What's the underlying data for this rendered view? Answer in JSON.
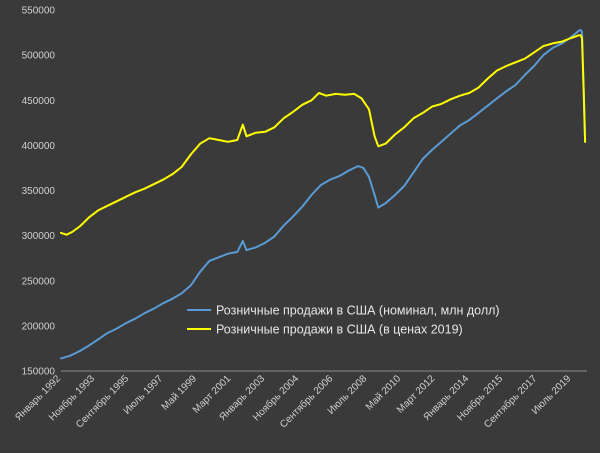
{
  "chart_data": {
    "type": "line",
    "ylim": [
      150000,
      550000
    ],
    "y_ticks": [
      150000,
      200000,
      250000,
      300000,
      350000,
      400000,
      450000,
      500000,
      550000
    ],
    "x_range": [
      1992.0,
      2020.35
    ],
    "x_tick_labels": [
      {
        "label": "Январь 1992",
        "x": 1992.0
      },
      {
        "label": "Ноябрь 1993",
        "x": 1993.83
      },
      {
        "label": "Сентябрь 1995",
        "x": 1995.67
      },
      {
        "label": "Июль 1997",
        "x": 1997.5
      },
      {
        "label": "Май 1999",
        "x": 1999.33
      },
      {
        "label": "Март 2001",
        "x": 2001.17
      },
      {
        "label": "Январь 2003",
        "x": 2003.0
      },
      {
        "label": "Ноябрь 2004",
        "x": 2004.83
      },
      {
        "label": "Сентябрь 2006",
        "x": 2006.67
      },
      {
        "label": "Июль 2008",
        "x": 2008.5
      },
      {
        "label": "Май 2010",
        "x": 2010.33
      },
      {
        "label": "Март 2012",
        "x": 2012.17
      },
      {
        "label": "Январь 2014",
        "x": 2014.0
      },
      {
        "label": "Ноябрь 2015",
        "x": 2015.83
      },
      {
        "label": "Сентябрь 2017",
        "x": 2017.67
      },
      {
        "label": "Июль 2019",
        "x": 2019.5
      }
    ],
    "grid": false,
    "legend_position": "bottom-center",
    "series": [
      {
        "name": "Розничные продажи в США (номинал, млн долл)",
        "color": "#5b9bd5",
        "points": [
          [
            1992.0,
            164000
          ],
          [
            1992.5,
            167000
          ],
          [
            1993.0,
            172000
          ],
          [
            1993.5,
            178000
          ],
          [
            1994.0,
            185000
          ],
          [
            1994.5,
            192000
          ],
          [
            1995.0,
            197000
          ],
          [
            1995.5,
            203000
          ],
          [
            1996.0,
            208000
          ],
          [
            1996.5,
            214000
          ],
          [
            1997.0,
            219000
          ],
          [
            1997.5,
            225000
          ],
          [
            1998.0,
            230000
          ],
          [
            1998.5,
            236000
          ],
          [
            1999.0,
            245000
          ],
          [
            1999.5,
            260000
          ],
          [
            2000.0,
            272000
          ],
          [
            2000.5,
            276000
          ],
          [
            2001.0,
            280000
          ],
          [
            2001.5,
            282000
          ],
          [
            2001.8,
            294000
          ],
          [
            2002.0,
            284000
          ],
          [
            2002.5,
            287000
          ],
          [
            2003.0,
            292000
          ],
          [
            2003.5,
            299000
          ],
          [
            2004.0,
            311000
          ],
          [
            2004.5,
            321000
          ],
          [
            2005.0,
            332000
          ],
          [
            2005.5,
            345000
          ],
          [
            2006.0,
            356000
          ],
          [
            2006.5,
            362000
          ],
          [
            2007.0,
            366000
          ],
          [
            2007.5,
            372000
          ],
          [
            2008.0,
            377000
          ],
          [
            2008.3,
            375000
          ],
          [
            2008.6,
            365000
          ],
          [
            2008.9,
            345000
          ],
          [
            2009.1,
            331000
          ],
          [
            2009.5,
            336000
          ],
          [
            2010.0,
            345000
          ],
          [
            2010.5,
            355000
          ],
          [
            2011.0,
            370000
          ],
          [
            2011.5,
            385000
          ],
          [
            2012.0,
            395000
          ],
          [
            2012.5,
            404000
          ],
          [
            2013.0,
            413000
          ],
          [
            2013.5,
            422000
          ],
          [
            2014.0,
            428000
          ],
          [
            2014.5,
            436000
          ],
          [
            2015.0,
            444000
          ],
          [
            2015.5,
            452000
          ],
          [
            2016.0,
            460000
          ],
          [
            2016.5,
            467000
          ],
          [
            2017.0,
            478000
          ],
          [
            2017.5,
            488000
          ],
          [
            2018.0,
            500000
          ],
          [
            2018.5,
            508000
          ],
          [
            2019.0,
            513000
          ],
          [
            2019.5,
            520000
          ],
          [
            2019.9,
            527000
          ],
          [
            2020.0,
            528000
          ],
          [
            2020.08,
            526000
          ],
          [
            2020.17,
            460000
          ],
          [
            2020.25,
            404000
          ]
        ]
      },
      {
        "name": "Розничные продажи в США (в ценах 2019)",
        "color": "#ffff00",
        "points": [
          [
            1992.0,
            303000
          ],
          [
            1992.3,
            301000
          ],
          [
            1992.6,
            304000
          ],
          [
            1993.0,
            310000
          ],
          [
            1993.5,
            320000
          ],
          [
            1994.0,
            328000
          ],
          [
            1994.5,
            333000
          ],
          [
            1995.0,
            338000
          ],
          [
            1995.5,
            343000
          ],
          [
            1996.0,
            348000
          ],
          [
            1996.5,
            352000
          ],
          [
            1997.0,
            357000
          ],
          [
            1997.5,
            362000
          ],
          [
            1998.0,
            368000
          ],
          [
            1998.5,
            376000
          ],
          [
            1999.0,
            390000
          ],
          [
            1999.5,
            402000
          ],
          [
            2000.0,
            408000
          ],
          [
            2000.5,
            406000
          ],
          [
            2001.0,
            404000
          ],
          [
            2001.5,
            406000
          ],
          [
            2001.8,
            423000
          ],
          [
            2002.0,
            410000
          ],
          [
            2002.5,
            414000
          ],
          [
            2003.0,
            415000
          ],
          [
            2003.5,
            420000
          ],
          [
            2004.0,
            430000
          ],
          [
            2004.5,
            437000
          ],
          [
            2005.0,
            445000
          ],
          [
            2005.5,
            450000
          ],
          [
            2005.9,
            458000
          ],
          [
            2006.3,
            455000
          ],
          [
            2006.8,
            457000
          ],
          [
            2007.3,
            456000
          ],
          [
            2007.8,
            457000
          ],
          [
            2008.2,
            452000
          ],
          [
            2008.6,
            440000
          ],
          [
            2008.9,
            410000
          ],
          [
            2009.1,
            399000
          ],
          [
            2009.5,
            402000
          ],
          [
            2010.0,
            412000
          ],
          [
            2010.5,
            420000
          ],
          [
            2011.0,
            430000
          ],
          [
            2011.5,
            436000
          ],
          [
            2012.0,
            443000
          ],
          [
            2012.5,
            446000
          ],
          [
            2013.0,
            451000
          ],
          [
            2013.5,
            455000
          ],
          [
            2014.0,
            458000
          ],
          [
            2014.5,
            464000
          ],
          [
            2015.0,
            474000
          ],
          [
            2015.5,
            483000
          ],
          [
            2016.0,
            488000
          ],
          [
            2016.5,
            492000
          ],
          [
            2017.0,
            496000
          ],
          [
            2017.5,
            503000
          ],
          [
            2018.0,
            510000
          ],
          [
            2018.5,
            513000
          ],
          [
            2019.0,
            515000
          ],
          [
            2019.5,
            519000
          ],
          [
            2019.9,
            522000
          ],
          [
            2020.0,
            522000
          ],
          [
            2020.08,
            519000
          ],
          [
            2020.17,
            460000
          ],
          [
            2020.25,
            404000
          ]
        ]
      }
    ]
  }
}
